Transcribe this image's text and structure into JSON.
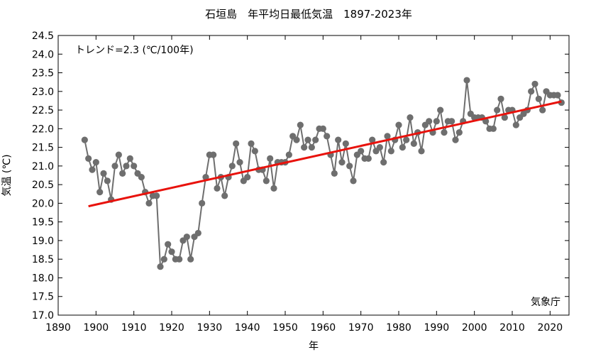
{
  "chart_data": {
    "type": "line",
    "title": "石垣島　年平均日最低気温　1897-2023年",
    "xlabel": "年",
    "ylabel": "気温 (℃)",
    "xlim": [
      1890,
      2025
    ],
    "ylim": [
      17.0,
      24.5
    ],
    "xticks": [
      1890,
      1900,
      1910,
      1920,
      1930,
      1940,
      1950,
      1960,
      1970,
      1980,
      1990,
      2000,
      2010,
      2020
    ],
    "yticks": [
      17.0,
      17.5,
      18.0,
      18.5,
      19.0,
      19.5,
      20.0,
      20.5,
      21.0,
      21.5,
      22.0,
      22.5,
      23.0,
      23.5,
      24.0,
      24.5
    ],
    "grid": false,
    "trend_label": "トレンド=2.3 (℃/100年)",
    "source_label": "気象庁",
    "series": [
      {
        "color": "#6e6e6e",
        "points": [
          [
            1897,
            21.7
          ],
          [
            1898,
            21.2
          ],
          [
            1899,
            20.9
          ],
          [
            1900,
            21.1
          ],
          [
            1901,
            20.3
          ],
          [
            1902,
            20.8
          ],
          [
            1903,
            20.6
          ],
          [
            1904,
            20.1
          ],
          [
            1905,
            21.0
          ],
          [
            1906,
            21.3
          ],
          [
            1907,
            20.8
          ],
          [
            1908,
            21.0
          ],
          [
            1909,
            21.2
          ],
          [
            1910,
            21.0
          ],
          [
            1911,
            20.8
          ],
          [
            1912,
            20.7
          ],
          [
            1913,
            20.3
          ],
          [
            1914,
            20.0
          ],
          [
            1915,
            20.2
          ],
          [
            1916,
            20.2
          ],
          [
            1917,
            18.3
          ],
          [
            1918,
            18.5
          ],
          [
            1919,
            18.9
          ],
          [
            1920,
            18.7
          ],
          [
            1921,
            18.5
          ],
          [
            1922,
            18.5
          ],
          [
            1923,
            19.0
          ],
          [
            1924,
            19.1
          ],
          [
            1925,
            18.5
          ],
          [
            1926,
            19.1
          ],
          [
            1927,
            19.2
          ],
          [
            1928,
            20.0
          ],
          [
            1929,
            20.7
          ],
          [
            1930,
            21.3
          ],
          [
            1931,
            21.3
          ],
          [
            1932,
            20.4
          ],
          [
            1933,
            20.7
          ],
          [
            1934,
            20.2
          ],
          [
            1935,
            20.7
          ],
          [
            1936,
            21.0
          ],
          [
            1937,
            21.6
          ],
          [
            1938,
            21.1
          ],
          [
            1939,
            20.6
          ],
          [
            1940,
            20.7
          ],
          [
            1941,
            21.6
          ],
          [
            1942,
            21.4
          ],
          [
            1943,
            20.9
          ],
          [
            1944,
            20.9
          ],
          [
            1945,
            20.6
          ],
          [
            1946,
            21.2
          ],
          [
            1947,
            20.4
          ],
          [
            1948,
            21.1
          ],
          [
            1949,
            21.1
          ],
          [
            1950,
            21.1
          ],
          [
            1951,
            21.3
          ],
          [
            1952,
            21.8
          ],
          [
            1953,
            21.7
          ],
          [
            1954,
            22.1
          ],
          [
            1955,
            21.5
          ],
          [
            1956,
            21.7
          ],
          [
            1957,
            21.5
          ],
          [
            1958,
            21.7
          ],
          [
            1959,
            22.0
          ],
          [
            1960,
            22.0
          ],
          [
            1961,
            21.8
          ],
          [
            1962,
            21.3
          ],
          [
            1963,
            20.8
          ],
          [
            1964,
            21.7
          ],
          [
            1965,
            21.1
          ],
          [
            1966,
            21.6
          ],
          [
            1967,
            21.0
          ],
          [
            1968,
            20.6
          ],
          [
            1969,
            21.3
          ],
          [
            1970,
            21.4
          ],
          [
            1971,
            21.2
          ],
          [
            1972,
            21.2
          ],
          [
            1973,
            21.7
          ],
          [
            1974,
            21.4
          ],
          [
            1975,
            21.5
          ],
          [
            1976,
            21.1
          ],
          [
            1977,
            21.8
          ],
          [
            1978,
            21.4
          ],
          [
            1979,
            21.7
          ],
          [
            1980,
            22.1
          ],
          [
            1981,
            21.5
          ],
          [
            1982,
            21.7
          ],
          [
            1983,
            22.3
          ],
          [
            1984,
            21.6
          ],
          [
            1985,
            21.9
          ],
          [
            1986,
            21.4
          ],
          [
            1987,
            22.1
          ],
          [
            1988,
            22.2
          ],
          [
            1989,
            21.9
          ],
          [
            1990,
            22.2
          ],
          [
            1991,
            22.5
          ],
          [
            1992,
            21.9
          ],
          [
            1993,
            22.2
          ],
          [
            1994,
            22.2
          ],
          [
            1995,
            21.7
          ],
          [
            1996,
            21.9
          ],
          [
            1997,
            22.2
          ],
          [
            1998,
            23.3
          ],
          [
            1999,
            22.4
          ],
          [
            2000,
            22.3
          ],
          [
            2001,
            22.3
          ],
          [
            2002,
            22.3
          ],
          [
            2003,
            22.2
          ],
          [
            2004,
            22.0
          ],
          [
            2005,
            22.0
          ],
          [
            2006,
            22.5
          ],
          [
            2007,
            22.8
          ],
          [
            2008,
            22.3
          ],
          [
            2009,
            22.5
          ],
          [
            2010,
            22.5
          ],
          [
            2011,
            22.1
          ],
          [
            2012,
            22.3
          ],
          [
            2013,
            22.4
          ],
          [
            2014,
            22.5
          ],
          [
            2015,
            23.0
          ],
          [
            2016,
            23.2
          ],
          [
            2017,
            22.8
          ],
          [
            2018,
            22.5
          ],
          [
            2019,
            23.0
          ],
          [
            2020,
            22.9
          ],
          [
            2021,
            22.9
          ],
          [
            2022,
            22.9
          ],
          [
            2023,
            22.7
          ]
        ]
      }
    ],
    "trend_line": {
      "color": "#e8120c",
      "x": [
        1898,
        2023
      ],
      "y": [
        19.92,
        22.73
      ]
    }
  }
}
